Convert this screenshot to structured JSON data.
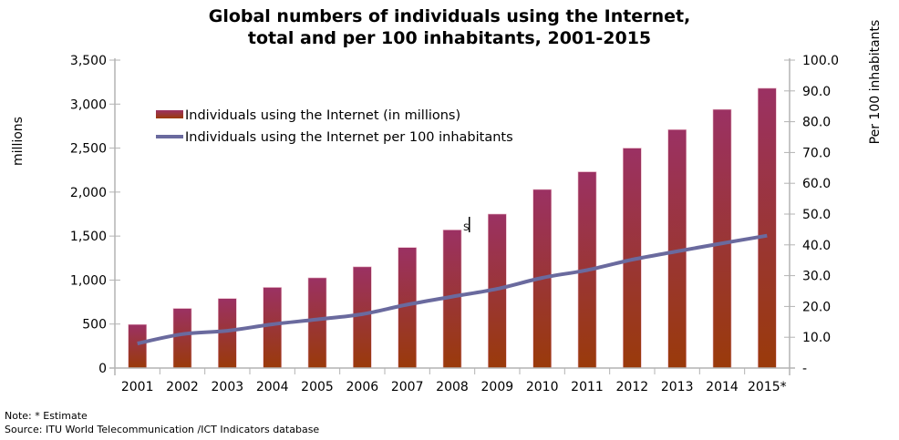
{
  "chart_data": {
    "type": "bar",
    "title_lines": [
      "Global numbers of individuals using the Internet,",
      "total and per 100 inhabitants, 2001-2015"
    ],
    "categories": [
      "2001",
      "2002",
      "2003",
      "2004",
      "2005",
      "2006",
      "2007",
      "2008",
      "2009",
      "2010",
      "2011",
      "2012",
      "2013",
      "2014",
      "2015*"
    ],
    "series": [
      {
        "name": "Individuals using the Internet (in millions)",
        "type": "bar",
        "axis": "left",
        "values": [
          495,
          677,
          790,
          916,
          1025,
          1150,
          1370,
          1570,
          1750,
          2030,
          2230,
          2500,
          2710,
          2940,
          3180
        ]
      },
      {
        "name": "Individuals using the Internet per 100 inhabitants",
        "type": "line",
        "axis": "right",
        "values": [
          8.0,
          11.0,
          12.1,
          14.2,
          15.8,
          17.5,
          20.6,
          23.2,
          25.7,
          29.3,
          31.8,
          35.2,
          37.9,
          40.5,
          43.0
        ]
      }
    ],
    "ylabel": "millions",
    "ylabel_right": "Per 100 inhabitants",
    "ylim": [
      0,
      3500
    ],
    "ylim_right": [
      0,
      100
    ],
    "yticks": [
      0,
      500,
      1000,
      1500,
      2000,
      2500,
      3000,
      3500
    ],
    "ytick_labels": [
      "0",
      "500",
      "1,000",
      "1,500",
      "2,000",
      "2,500",
      "3,000",
      "3,500"
    ],
    "yticks_right": [
      0,
      10,
      20,
      30,
      40,
      50,
      60,
      70,
      80,
      90,
      100
    ],
    "ytick_labels_right": [
      "-",
      "10.0",
      "20.0",
      "30.0",
      "40.0",
      "50.0",
      "60.0",
      "70.0",
      "80.0",
      "90.0",
      "100.0"
    ],
    "legend_position": "top-left",
    "grid": false,
    "colors": {
      "bar_top": "#9b3163",
      "bar_bottom": "#9a3a0a",
      "line": "#6a6a9e",
      "axis": "#b3b3b3"
    },
    "annotation_cursor_text": "s"
  },
  "notes": {
    "note": "Note: * Estimate",
    "source": "Source:  ITU World Telecommunication /ICT Indicators database"
  }
}
